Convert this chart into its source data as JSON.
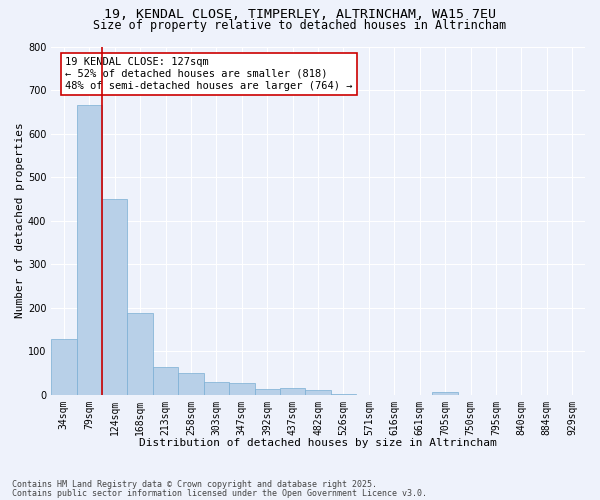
{
  "title1": "19, KENDAL CLOSE, TIMPERLEY, ALTRINCHAM, WA15 7EU",
  "title2": "Size of property relative to detached houses in Altrincham",
  "xlabel": "Distribution of detached houses by size in Altrincham",
  "ylabel": "Number of detached properties",
  "categories": [
    "34sqm",
    "79sqm",
    "124sqm",
    "168sqm",
    "213sqm",
    "258sqm",
    "303sqm",
    "347sqm",
    "392sqm",
    "437sqm",
    "482sqm",
    "526sqm",
    "571sqm",
    "616sqm",
    "661sqm",
    "705sqm",
    "750sqm",
    "795sqm",
    "840sqm",
    "884sqm",
    "929sqm"
  ],
  "values": [
    127,
    665,
    450,
    188,
    63,
    50,
    28,
    27,
    13,
    15,
    10,
    2,
    0,
    0,
    0,
    5,
    0,
    0,
    0,
    0,
    0
  ],
  "bar_color": "#b8d0e8",
  "bar_edge_color": "#7aafd4",
  "vline_color": "#cc0000",
  "annotation_text": "19 KENDAL CLOSE: 127sqm\n← 52% of detached houses are smaller (818)\n48% of semi-detached houses are larger (764) →",
  "annotation_box_color": "#ffffff",
  "annotation_box_edge": "#cc0000",
  "ylim": [
    0,
    800
  ],
  "yticks": [
    0,
    100,
    200,
    300,
    400,
    500,
    600,
    700,
    800
  ],
  "footer1": "Contains HM Land Registry data © Crown copyright and database right 2025.",
  "footer2": "Contains public sector information licensed under the Open Government Licence v3.0.",
  "bg_color": "#eef2fb",
  "plot_bg_color": "#eef2fb",
  "grid_color": "#ffffff",
  "title1_fontsize": 9.5,
  "title2_fontsize": 8.5,
  "xlabel_fontsize": 8,
  "ylabel_fontsize": 8,
  "tick_fontsize": 7,
  "annotation_fontsize": 7.5,
  "footer_fontsize": 6
}
